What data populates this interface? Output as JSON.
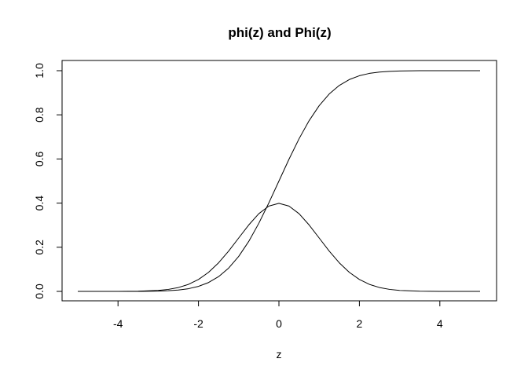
{
  "chart_data": {
    "type": "line",
    "title": "phi(z) and Phi(z)",
    "subtitle": "",
    "xlabel": "z",
    "ylabel": "",
    "xlim": [
      -5,
      5
    ],
    "ylim": [
      0,
      1
    ],
    "grid": false,
    "legend": "none",
    "x_ticks": [
      -4,
      -2,
      0,
      2,
      4
    ],
    "x_tick_labels": [
      "-4",
      "-2",
      "0",
      "2",
      "4"
    ],
    "y_ticks": [
      0.0,
      0.2,
      0.4,
      0.6,
      0.8,
      1.0
    ],
    "y_tick_labels": [
      "0.0",
      "0.2",
      "0.4",
      "0.6",
      "0.8",
      "1.0"
    ],
    "x": [
      -5.0,
      -4.5,
      -4.0,
      -3.5,
      -3.0,
      -2.75,
      -2.5,
      -2.25,
      -2.0,
      -1.75,
      -1.5,
      -1.25,
      -1.0,
      -0.75,
      -0.5,
      -0.25,
      0.0,
      0.25,
      0.5,
      0.75,
      1.0,
      1.25,
      1.5,
      1.75,
      2.0,
      2.25,
      2.5,
      2.75,
      3.0,
      3.5,
      4.0,
      4.5,
      5.0
    ],
    "series": [
      {
        "values": [
          0.0,
          0.0,
          0.0001,
          0.0009,
          0.0044,
          0.0091,
          0.0175,
          0.0317,
          0.054,
          0.0863,
          0.1295,
          0.1826,
          0.242,
          0.3011,
          0.3521,
          0.3867,
          0.3989,
          0.3867,
          0.3521,
          0.3011,
          0.242,
          0.1826,
          0.1295,
          0.0863,
          0.054,
          0.0317,
          0.0175,
          0.0091,
          0.0044,
          0.0009,
          0.0001,
          0.0,
          0.0
        ]
      },
      {
        "values": [
          0.0,
          0.0,
          0.0,
          0.0002,
          0.0013,
          0.003,
          0.0062,
          0.0122,
          0.0228,
          0.0401,
          0.0668,
          0.1056,
          0.1587,
          0.2266,
          0.3085,
          0.4013,
          0.5,
          0.5987,
          0.6915,
          0.7734,
          0.8413,
          0.8944,
          0.9332,
          0.9599,
          0.9772,
          0.9878,
          0.9938,
          0.997,
          0.9987,
          0.9998,
          1.0,
          1.0,
          1.0
        ]
      }
    ],
    "colors": {
      "line": "#000000",
      "axis": "#000000",
      "background": "#ffffff"
    }
  }
}
